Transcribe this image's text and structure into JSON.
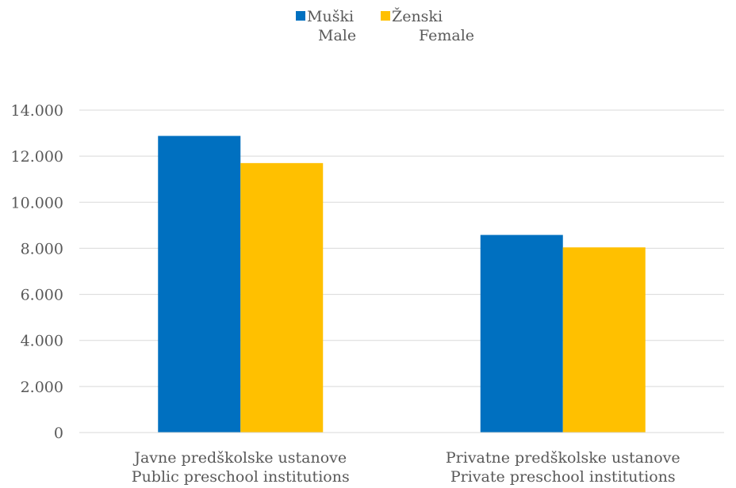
{
  "chart_data": {
    "type": "bar",
    "categories": [
      [
        "Javne predškolske ustanove",
        "Public preschool institutions"
      ],
      [
        "Privatne predškolske ustanove",
        "Private preschool institutions"
      ]
    ],
    "series": [
      {
        "name": [
          "Muški",
          "Male"
        ],
        "color": "#0070C0",
        "values": [
          12880,
          8580
        ]
      },
      {
        "name": [
          "Ženski",
          "Female"
        ],
        "color": "#FFC000",
        "values": [
          11700,
          8040
        ]
      }
    ],
    "y_ticks": [
      "0",
      "2.000",
      "4.000",
      "6.000",
      "8.000",
      "10.000",
      "12.000",
      "14.000"
    ],
    "ylim": [
      0,
      14000
    ],
    "grid": true,
    "legend_position": "top-center"
  }
}
